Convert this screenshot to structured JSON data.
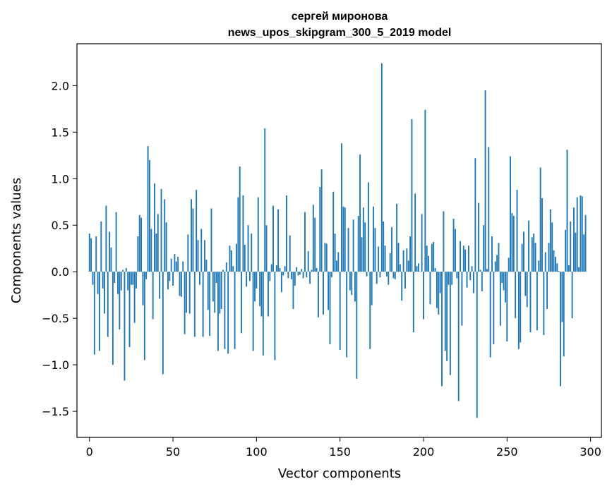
{
  "chart_data": {
    "type": "bar",
    "title": "сергей миронова",
    "subtitle": "news_upos_skipgram_300_5_2019 model",
    "xlabel": "Vector components",
    "ylabel": "Components values",
    "xlim": [
      -7.5,
      306.5
    ],
    "ylim": [
      -1.78,
      2.45
    ],
    "xticks": [
      0,
      50,
      100,
      150,
      200,
      250,
      300
    ],
    "yticks": [
      -1.5,
      -1.0,
      -0.5,
      0.0,
      0.5,
      1.0,
      1.5,
      2.0
    ],
    "ytick_labels": [
      "−1.5",
      "−1.0",
      "−0.5",
      "0.0",
      "0.5",
      "1.0",
      "1.5",
      "2.0"
    ],
    "grid": false,
    "bar_color": "#1f77b4",
    "values": [
      0.41,
      0.36,
      -0.14,
      -0.89,
      0.38,
      -0.24,
      -0.85,
      0.54,
      -0.18,
      -0.45,
      0.71,
      -0.7,
      0.43,
      0.26,
      -1.0,
      -0.12,
      0.64,
      -0.24,
      -0.62,
      -0.2,
      0.02,
      -1.17,
      0.04,
      -0.2,
      -0.81,
      -0.14,
      -0.14,
      -0.55,
      -0.18,
      0.38,
      0.61,
      0.58,
      -0.36,
      -0.95,
      -0.08,
      1.35,
      1.2,
      0.46,
      -0.51,
      0.95,
      0.41,
      0.62,
      -0.29,
      0.89,
      -1.1,
      0.78,
      0.53,
      -0.19,
      -0.1,
      0.14,
      -0.15,
      0.19,
      0.11,
      0.16,
      -0.26,
      -0.27,
      0.11,
      -0.67,
      -0.44,
      0.4,
      -0.45,
      0.78,
      0.68,
      -0.7,
      0.88,
      0.34,
      -0.14,
      0.46,
      -0.7,
      0.34,
      0.13,
      -0.41,
      -0.69,
      0.68,
      -0.32,
      -0.44,
      -0.12,
      -0.85,
      -0.45,
      -0.4,
      0.02,
      -0.83,
      0.1,
      -0.88,
      0.28,
      0.23,
      0.06,
      -0.83,
      0.3,
      0.8,
      1.13,
      -0.66,
      0.82,
      0.29,
      -0.16,
      0.5,
      -0.1,
      0.41,
      -0.85,
      -0.32,
      -0.18,
      0.8,
      -0.37,
      -0.48,
      -0.9,
      1.54,
      0.5,
      -0.48,
      -0.1,
      0.08,
      0.71,
      -0.95,
      0.07,
      0.67,
      0.04,
      -0.22,
      -0.04,
      0.06,
      0.82,
      -0.07,
      0.39,
      -0.08,
      -0.4,
      -0.15,
      0.05,
      -0.04,
      -0.03,
      0.03,
      -0.07,
      0.64,
      -0.06,
      0.22,
      -0.13,
      0.02,
      0.72,
      0.58,
      0.04,
      -0.49,
      0.91,
      1.1,
      -0.46,
      0.31,
      0.3,
      -0.41,
      -0.78,
      -0.06,
      0.86,
      0.41,
      0.12,
      0.21,
      -0.84,
      1.38,
      0.7,
      0.69,
      -0.92,
      0.47,
      -0.2,
      -0.25,
      0.56,
      -0.32,
      -1.15,
      0.6,
      1.26,
      0.37,
      0.69,
      0.53,
      -0.05,
      0.96,
      -0.83,
      -0.36,
      0.7,
      0.47,
      -0.13,
      0.27,
      -0.06,
      2.24,
      0.54,
      0.28,
      -0.05,
      -0.14,
      0.2,
      0.48,
      -0.07,
      -0.08,
      0.73,
      0.31,
      0.08,
      -0.31,
      0.23,
      -0.18,
      0.25,
      0.12,
      0.38,
      1.64,
      -0.65,
      0.84,
      0.06,
      0.09,
      0.0,
      0.62,
      -0.51,
      1.74,
      0.28,
      0.17,
      -0.35,
      0.3,
      0.32,
      0.04,
      -0.39,
      -0.46,
      -0.23,
      -1.23,
      0.65,
      -0.85,
      -0.96,
      -0.14,
      -1.11,
      -0.14,
      0.57,
      0.46,
      -0.07,
      -1.39,
      0.33,
      -0.58,
      0.28,
      0.24,
      -0.17,
      0.28,
      -0.09,
      0.06,
      -0.23,
      1.22,
      -1.57,
      0.74,
      0.02,
      -0.21,
      0.5,
      1.95,
      0.03,
      1.34,
      -0.92,
      0.38,
      -0.78,
      0.11,
      0.18,
      0.31,
      -0.58,
      -0.12,
      -0.2,
      -0.33,
      -0.75,
      0.15,
      1.24,
      0.63,
      0.6,
      -0.5,
      0.88,
      -0.83,
      -0.76,
      0.3,
      0.43,
      -0.26,
      -0.38,
      0.55,
      -0.65,
      0.37,
      0.41,
      0.31,
      -0.63,
      0.12,
      1.12,
      0.79,
      -0.68,
      0.21,
      -0.4,
      0.31,
      0.67,
      0.53,
      0.23,
      0.16,
      0.09,
      0.01,
      -1.23,
      -0.54,
      -0.91,
      0.45,
      1.31,
      0.07,
      0.54,
      -0.5,
      0.69,
      0.42,
      0.8,
      0.05,
      0.82,
      0.81,
      0.4,
      0.61
    ]
  }
}
